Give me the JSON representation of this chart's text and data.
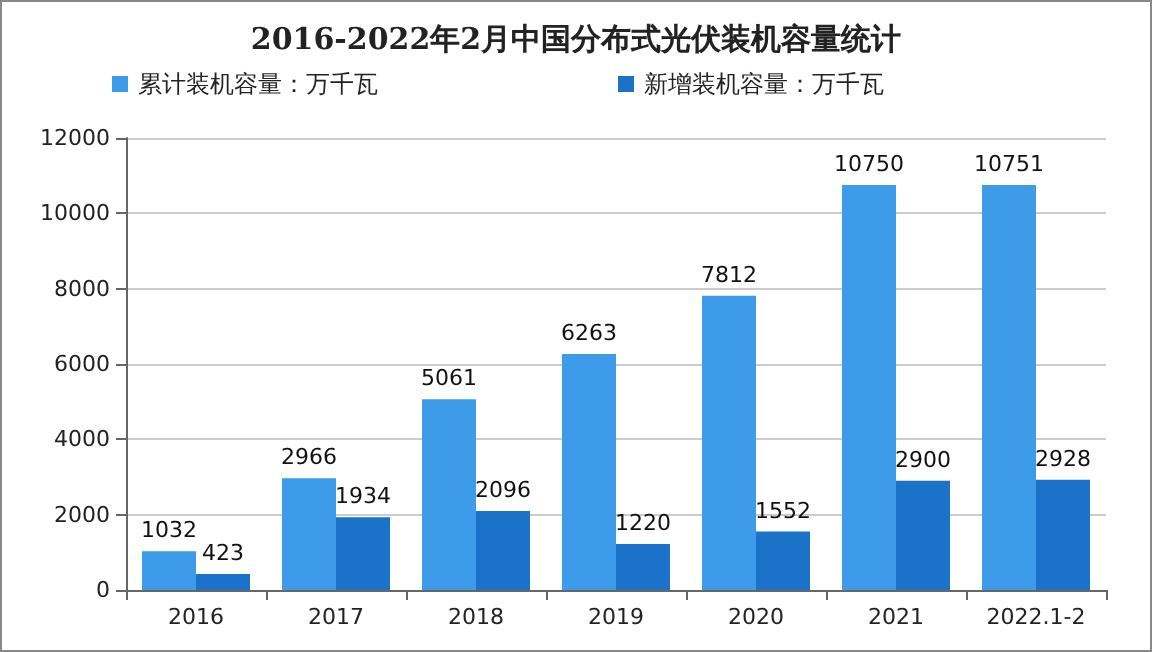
{
  "chart_data": {
    "type": "bar",
    "title": "2016-2022年2月中国分布式光伏装机容量统计",
    "categories": [
      "2016",
      "2017",
      "2018",
      "2019",
      "2020",
      "2021",
      "2022.1-2"
    ],
    "series": [
      {
        "name": "累计装机容量：万千瓦",
        "color": "#3d9be9",
        "values": [
          1032,
          2966,
          5061,
          6263,
          7812,
          10750,
          10751
        ]
      },
      {
        "name": "新增装机容量：万千瓦",
        "color": "#1a72c9",
        "values": [
          423,
          1934,
          2096,
          1220,
          1552,
          2900,
          2928
        ]
      }
    ],
    "ylim": [
      0,
      12000
    ],
    "yticks": [
      0,
      2000,
      4000,
      6000,
      8000,
      10000,
      12000
    ],
    "grid": "y",
    "legend": "top left",
    "data_labels": true
  }
}
